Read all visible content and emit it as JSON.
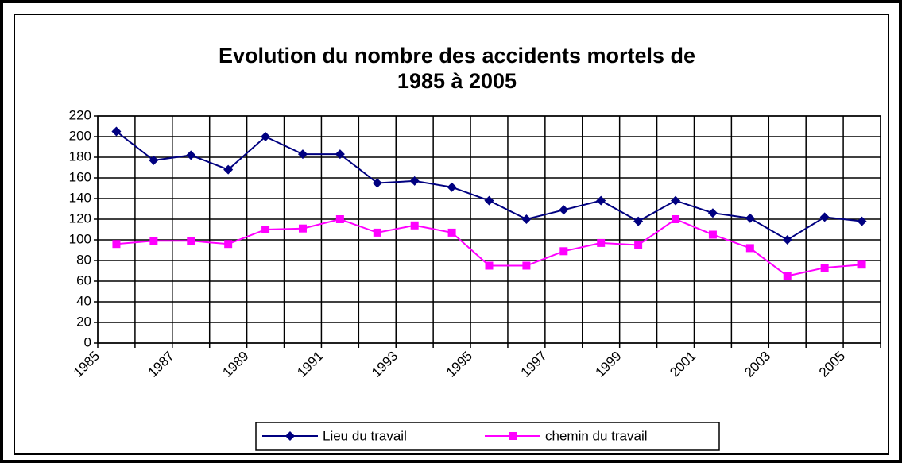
{
  "chart_data": {
    "type": "line",
    "title": [
      "Evolution du nombre des accidents mortels de",
      "1985 à 2005"
    ],
    "categories": [
      "1985",
      null,
      "1987",
      null,
      "1989",
      null,
      "1991",
      null,
      "1993",
      null,
      "1995",
      null,
      "1997",
      null,
      "1999",
      null,
      "2001",
      null,
      "2003",
      null,
      "2005"
    ],
    "series": [
      {
        "name": "Lieu du travail",
        "color": "#000080",
        "marker": "diamond",
        "values": [
          205,
          177,
          182,
          168,
          200,
          183,
          183,
          155,
          157,
          151,
          138,
          120,
          129,
          138,
          118,
          138,
          126,
          121,
          100,
          122,
          118
        ]
      },
      {
        "name": "chemin du travail",
        "color": "#ff00ff",
        "marker": "square",
        "values": [
          96,
          99,
          99,
          96,
          110,
          111,
          120,
          107,
          114,
          107,
          75,
          75,
          89,
          97,
          95,
          120,
          105,
          92,
          65,
          73,
          76
        ]
      }
    ],
    "ylim": [
      0,
      220
    ],
    "yticks": [
      0,
      20,
      40,
      60,
      80,
      100,
      120,
      140,
      160,
      180,
      200,
      220
    ],
    "grid": true,
    "legend": "bottom"
  }
}
